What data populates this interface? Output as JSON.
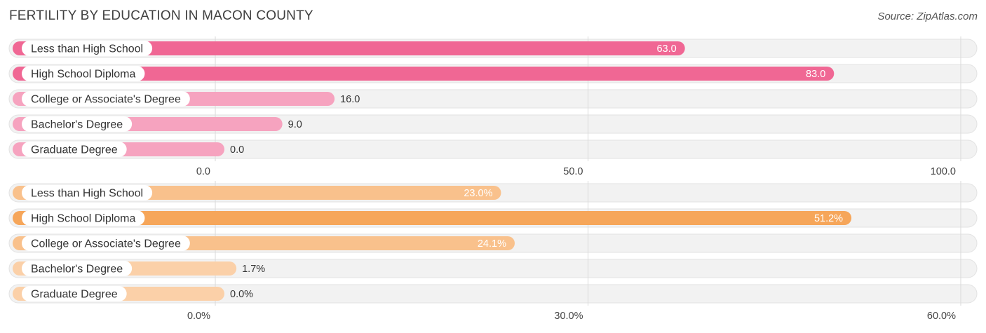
{
  "title": "FERTILITY BY EDUCATION IN MACON COUNTY",
  "source": "Source: ZipAtlas.com",
  "chart_data": [
    {
      "type": "bar",
      "orientation": "horizontal",
      "categories": [
        "Less than High School",
        "High School Diploma",
        "College or Associate's Degree",
        "Bachelor's Degree",
        "Graduate Degree"
      ],
      "values": [
        63.0,
        83.0,
        16.0,
        9.0,
        0.0
      ],
      "value_labels": [
        "63.0",
        "83.0",
        "16.0",
        "9.0",
        "0.0"
      ],
      "ticks": [
        0,
        50,
        100
      ],
      "tick_labels": [
        "0.0",
        "50.0",
        "100.0"
      ],
      "xlim": [
        0,
        100
      ],
      "colors": [
        "#f06794",
        "#f06794",
        "#f6a3bf",
        "#f6a3bf",
        "#f6a3bf"
      ],
      "grid": true
    },
    {
      "type": "bar",
      "orientation": "horizontal",
      "categories": [
        "Less than High School",
        "High School Diploma",
        "College or Associate's Degree",
        "Bachelor's Degree",
        "Graduate Degree"
      ],
      "values": [
        23.0,
        51.2,
        24.1,
        1.7,
        0.0
      ],
      "value_labels": [
        "23.0%",
        "51.2%",
        "24.1%",
        "1.7%",
        "0.0%"
      ],
      "ticks": [
        0,
        30,
        60
      ],
      "tick_labels": [
        "0.0%",
        "30.0%",
        "60.0%"
      ],
      "xlim": [
        0,
        60
      ],
      "colors": [
        "#f9c18c",
        "#f6a65a",
        "#f9c18c",
        "#fbd0a8",
        "#fbd0a8"
      ],
      "grid": true
    }
  ]
}
